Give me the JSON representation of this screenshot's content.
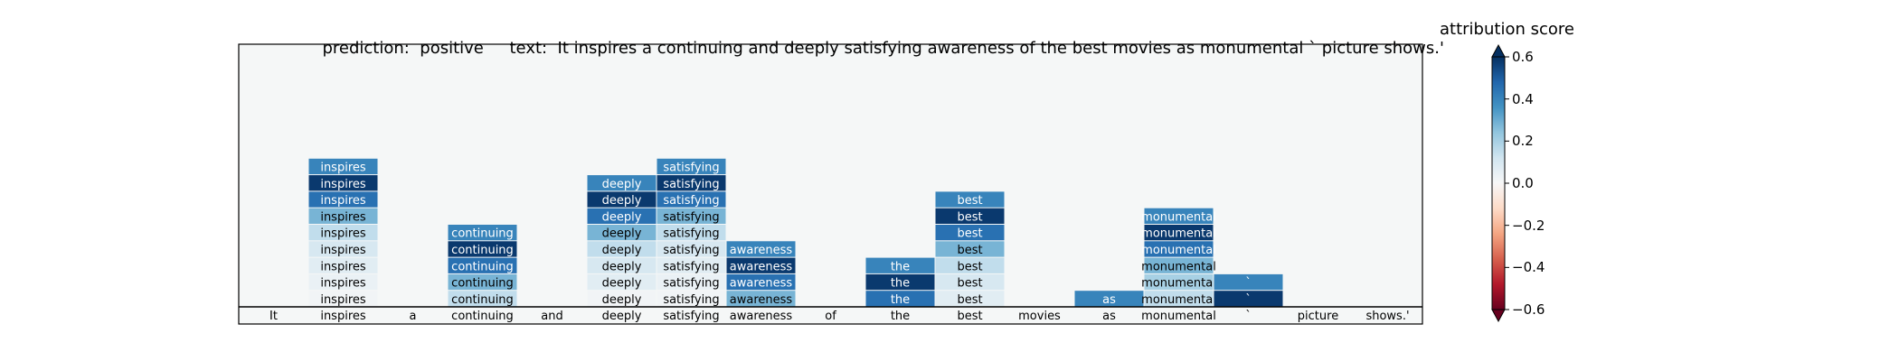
{
  "title": {
    "prediction_label": "prediction:",
    "prediction_value": "positive",
    "text_label": "text:",
    "text_value": "It inspires a continuing and deeply satisfying awareness of the best movies as monumental ` picture shows.'"
  },
  "colorbar": {
    "title": "attribution score",
    "ticks": [
      "0.6",
      "0.4",
      "0.2",
      "0.0",
      "−0.2",
      "−0.4",
      "−0.6"
    ],
    "tick_values": [
      0.6,
      0.4,
      0.2,
      0.0,
      -0.2,
      -0.4,
      -0.6
    ],
    "range": [
      -0.6,
      0.6
    ],
    "colormap": "RdBu"
  },
  "chart_data": {
    "type": "heatmap",
    "tokens": [
      "It",
      "inspires",
      "a",
      "continuing",
      "and",
      "deeply",
      "satisfying",
      "awareness",
      "of",
      "the",
      "best",
      "movies",
      "as",
      "monumental",
      "`",
      "picture",
      "shows.'"
    ],
    "rows_above_tokens": 9,
    "columns": [
      {
        "token": "It",
        "values": []
      },
      {
        "token": "inspires",
        "values": [
          0.02,
          0.04,
          0.07,
          0.1,
          0.15,
          0.28,
          0.45,
          0.58,
          0.4
        ]
      },
      {
        "token": "a",
        "values": []
      },
      {
        "token": "continuing",
        "values": [
          0.15,
          0.28,
          0.45,
          0.58,
          0.4
        ]
      },
      {
        "token": "and",
        "values": []
      },
      {
        "token": "deeply",
        "values": [
          0.02,
          0.07,
          0.1,
          0.15,
          0.28,
          0.45,
          0.58,
          0.4
        ]
      },
      {
        "token": "satisfying",
        "values": [
          0.02,
          0.04,
          0.07,
          0.1,
          0.15,
          0.28,
          0.45,
          0.58,
          0.4
        ]
      },
      {
        "token": "awareness",
        "values": [
          0.28,
          0.45,
          0.58,
          0.4
        ]
      },
      {
        "token": "of",
        "values": []
      },
      {
        "token": "the",
        "values": [
          0.45,
          0.58,
          0.4
        ]
      },
      {
        "token": "best",
        "values": [
          0.07,
          0.1,
          0.15,
          0.28,
          0.45,
          0.58,
          0.4
        ]
      },
      {
        "token": "movies",
        "values": []
      },
      {
        "token": "as",
        "values": [
          0.4
        ]
      },
      {
        "token": "monumental",
        "values": [
          0.15,
          0.2,
          0.28,
          0.45,
          0.58,
          0.4
        ]
      },
      {
        "token": "`",
        "values": [
          0.58,
          0.4
        ]
      },
      {
        "token": "picture",
        "values": []
      },
      {
        "token": "shows.'",
        "values": []
      }
    ]
  }
}
